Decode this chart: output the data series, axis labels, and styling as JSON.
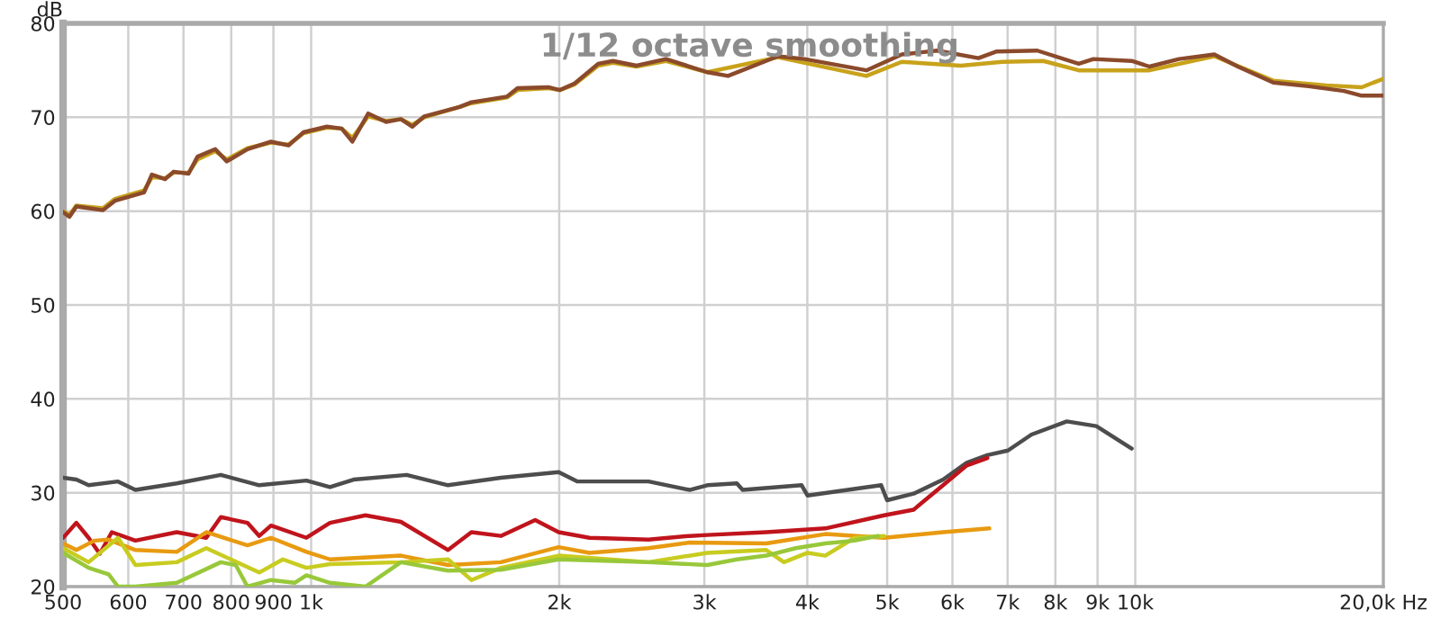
{
  "chart_data": {
    "type": "line",
    "title": "1/12 octave smoothing",
    "ylabel": "dB",
    "log": "x",
    "grid": true,
    "marker": "none",
    "line_style": "solid",
    "xlim": [
      500,
      20000
    ],
    "ylim": [
      20,
      80
    ],
    "xticks": [
      {
        "value": 500,
        "label": "500"
      },
      {
        "value": 600,
        "label": "600"
      },
      {
        "value": 700,
        "label": "700"
      },
      {
        "value": 800,
        "label": "800"
      },
      {
        "value": 900,
        "label": "900"
      },
      {
        "value": 1000,
        "label": "1k"
      },
      {
        "value": 2000,
        "label": "2k"
      },
      {
        "value": 3000,
        "label": "3k"
      },
      {
        "value": 4000,
        "label": "4k"
      },
      {
        "value": 5000,
        "label": "5k"
      },
      {
        "value": 6000,
        "label": "6k"
      },
      {
        "value": 7000,
        "label": "7k"
      },
      {
        "value": 8000,
        "label": "8k"
      },
      {
        "value": 9000,
        "label": "9k"
      },
      {
        "value": 10000,
        "label": "10k"
      },
      {
        "value": 20000,
        "label": "20,0k Hz"
      }
    ],
    "yticks": [
      20,
      30,
      40,
      50,
      60,
      70,
      80
    ],
    "series": [
      {
        "color": "#c8a21a",
        "x": [
          500,
          509,
          519,
          559,
          578,
          627,
          641,
          665,
          681,
          710,
          728,
          765,
          790,
          837,
          894,
          939,
          979,
          1045,
          1089,
          1122,
          1173,
          1233,
          1285,
          1327,
          1372,
          1514,
          1565,
          1728,
          1780,
          1940,
          2004,
          2088,
          2230,
          2324,
          2482,
          2695,
          3025,
          3686,
          4718,
          5208,
          6142,
          6894,
          7734,
          8538,
          10404,
          12471,
          14703,
          17056,
          18825,
          20000
        ],
        "values": [
          60.0,
          59.6,
          60.6,
          60.3,
          61.3,
          62.2,
          63.6,
          63.5,
          64.1,
          64.1,
          65.5,
          66.4,
          65.5,
          66.7,
          67.3,
          67.1,
          68.3,
          68.9,
          68.8,
          67.8,
          70.1,
          69.6,
          69.8,
          69.2,
          70.0,
          71.1,
          71.5,
          72.1,
          72.9,
          73.1,
          72.9,
          73.5,
          75.5,
          75.8,
          75.4,
          76.0,
          74.8,
          76.4,
          74.4,
          75.9,
          75.5,
          75.9,
          76.0,
          75.0,
          75.0,
          76.5,
          73.9,
          73.4,
          73.2,
          74.1
        ]
      },
      {
        "color": "#8b4a2b",
        "x": [
          500,
          509,
          519,
          559,
          578,
          627,
          641,
          665,
          681,
          710,
          728,
          765,
          790,
          837,
          894,
          939,
          979,
          1045,
          1089,
          1122,
          1173,
          1233,
          1285,
          1327,
          1372,
          1514,
          1565,
          1728,
          1780,
          1940,
          2004,
          2088,
          2230,
          2324,
          2482,
          2695,
          3025,
          3205,
          3686,
          3969,
          4718,
          5208,
          5750,
          6452,
          6780,
          7606,
          8538,
          8896,
          9901,
          10404,
          11298,
          12471,
          13318,
          14703,
          16231,
          17917,
          18825,
          20000
        ],
        "values": [
          59.9,
          59.4,
          60.5,
          60.1,
          61.1,
          62.0,
          63.9,
          63.4,
          64.2,
          64.0,
          65.8,
          66.6,
          65.3,
          66.6,
          67.4,
          67.0,
          68.4,
          69.0,
          68.8,
          67.4,
          70.4,
          69.5,
          69.8,
          69.0,
          70.1,
          71.1,
          71.6,
          72.2,
          73.1,
          73.2,
          72.9,
          73.6,
          75.7,
          76.0,
          75.5,
          76.2,
          74.8,
          74.4,
          76.5,
          76.2,
          75.0,
          76.7,
          77.1,
          76.3,
          77.0,
          77.1,
          75.7,
          76.2,
          76.0,
          75.4,
          76.2,
          76.7,
          75.4,
          73.7,
          73.3,
          72.8,
          72.3,
          72.3
        ]
      },
      {
        "color": "#4d4d4d",
        "x": [
          500,
          519,
          537,
          583,
          612,
          687,
          777,
          865,
          987,
          1054,
          1126,
          1306,
          1466,
          1699,
          1997,
          2105,
          2567,
          2879,
          3025,
          3285,
          3339,
          3937,
          4003,
          4917,
          4999,
          5384,
          5846,
          6244,
          6615,
          7006,
          7483,
          8260,
          8970,
          9901
        ],
        "values": [
          31.6,
          31.4,
          30.8,
          31.2,
          30.3,
          31.0,
          31.9,
          30.8,
          31.3,
          30.6,
          31.4,
          31.9,
          30.8,
          31.6,
          32.2,
          31.2,
          31.2,
          30.3,
          30.8,
          31.0,
          30.3,
          30.8,
          29.7,
          30.8,
          29.2,
          29.9,
          31.4,
          33.2,
          34.0,
          34.5,
          36.2,
          37.6,
          37.1,
          34.7
        ]
      },
      {
        "color": "#c0141c",
        "x": [
          500,
          519,
          537,
          554,
          573,
          612,
          687,
          746,
          777,
          837,
          865,
          894,
          987,
          1054,
          1164,
          1285,
          1466,
          1565,
          1699,
          1870,
          1997,
          2176,
          2567,
          2879,
          3025,
          3566,
          4206,
          4958,
          5384,
          5846,
          6244,
          6615
        ],
        "values": [
          25.2,
          26.8,
          25.2,
          23.5,
          25.8,
          24.9,
          25.8,
          25.2,
          27.4,
          26.8,
          25.4,
          26.5,
          25.2,
          26.8,
          27.6,
          26.9,
          23.9,
          25.8,
          25.4,
          27.1,
          25.8,
          25.2,
          25.0,
          25.4,
          25.5,
          25.8,
          26.2,
          27.6,
          28.2,
          30.8,
          32.9,
          33.7
        ]
      },
      {
        "color": "#e89a10",
        "x": [
          500,
          519,
          546,
          568,
          612,
          687,
          746,
          837,
          894,
          987,
          1054,
          1285,
          1466,
          1699,
          1997,
          2176,
          2567,
          2879,
          3566,
          4206,
          4958,
          5846,
          6652
        ],
        "values": [
          24.6,
          23.9,
          24.9,
          25.0,
          23.9,
          23.7,
          25.8,
          24.4,
          25.2,
          23.7,
          22.9,
          23.3,
          22.3,
          22.6,
          24.2,
          23.6,
          24.1,
          24.7,
          24.6,
          25.6,
          25.2,
          25.8,
          26.2
        ]
      },
      {
        "color": "#c8cc20",
        "x": [
          500,
          537,
          583,
          612,
          687,
          746,
          865,
          924,
          987,
          1054,
          1285,
          1466,
          1565,
          1699,
          1997,
          2567,
          3025,
          3566,
          3747,
          4003,
          4206,
          4565,
          4958
        ],
        "values": [
          24.1,
          22.6,
          25.2,
          22.3,
          22.6,
          24.1,
          21.5,
          22.9,
          22.0,
          22.4,
          22.6,
          22.9,
          20.7,
          22.0,
          23.3,
          22.6,
          23.6,
          23.9,
          22.6,
          23.6,
          23.3,
          25.2,
          25.4
        ]
      },
      {
        "color": "#98c83a",
        "x": [
          500,
          537,
          568,
          583,
          612,
          687,
          777,
          810,
          837,
          894,
          955,
          987,
          1054,
          1164,
          1285,
          1466,
          1699,
          1997,
          2567,
          3025,
          3285,
          3566,
          3873,
          4206,
          4565,
          4877
        ],
        "values": [
          23.6,
          22.0,
          21.3,
          20.0,
          20.0,
          20.4,
          22.6,
          22.3,
          20.0,
          20.7,
          20.4,
          21.2,
          20.4,
          20.0,
          22.6,
          21.7,
          21.8,
          22.9,
          22.6,
          22.3,
          22.9,
          23.3,
          24.1,
          24.6,
          24.9,
          25.4
        ]
      }
    ]
  }
}
